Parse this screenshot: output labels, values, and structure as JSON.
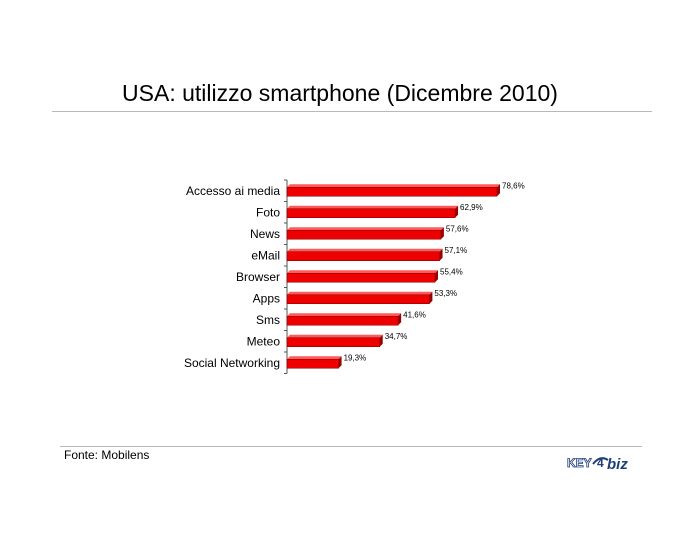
{
  "page": {
    "title": "USA: utilizzo smartphone (Dicembre 2010)",
    "source": "Fonte: Mobilens",
    "logo_text": "KEY4biz"
  },
  "chart_data": {
    "type": "bar",
    "orientation": "horizontal",
    "title": "USA: utilizzo smartphone (Dicembre 2010)",
    "categories": [
      "Accesso ai media",
      "Foto",
      "News",
      "eMail",
      "Browser",
      "Apps",
      "Sms",
      "Meteo",
      "Social Networking"
    ],
    "values": [
      78.6,
      62.9,
      57.6,
      57.1,
      55.4,
      53.3,
      41.6,
      34.7,
      19.3
    ],
    "value_labels": [
      "78,6%",
      "62,9%",
      "57,6%",
      "57,1%",
      "55,4%",
      "53,3%",
      "41,6%",
      "34,7%",
      "19,3%"
    ],
    "xlabel": "",
    "ylabel": "",
    "xlim": [
      0,
      100
    ],
    "grid": false,
    "legend": "none",
    "colors": {
      "bar": "#ee0000",
      "bar_side": "#990000",
      "bar_top": "#ff5a5a",
      "axis": "#555555"
    }
  }
}
